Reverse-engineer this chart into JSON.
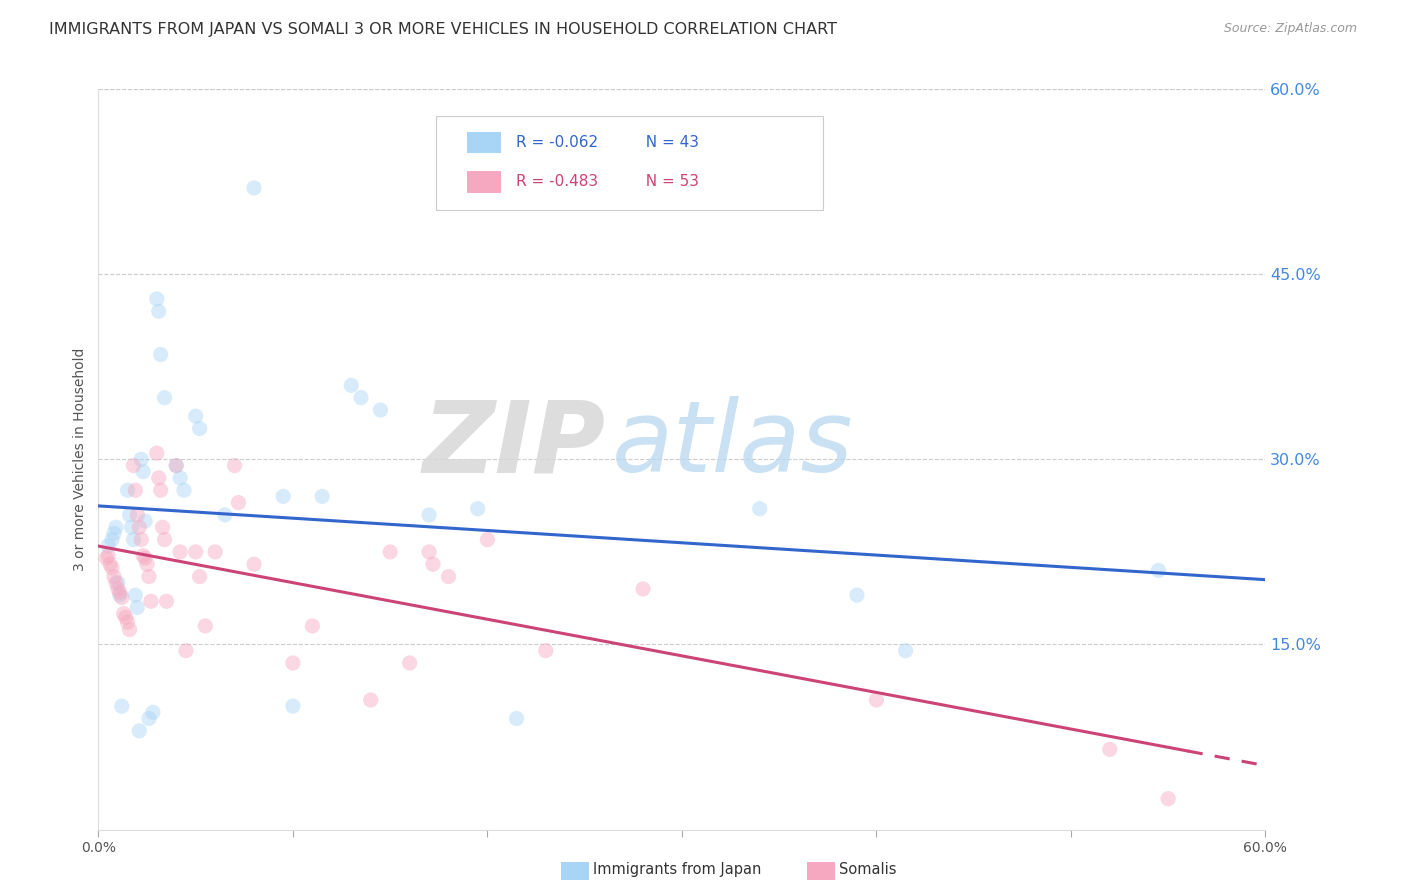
{
  "title": "IMMIGRANTS FROM JAPAN VS SOMALI 3 OR MORE VEHICLES IN HOUSEHOLD CORRELATION CHART",
  "source": "Source: ZipAtlas.com",
  "ylabel": "3 or more Vehicles in Household",
  "watermark_part1": "ZIP",
  "watermark_part2": "atlas",
  "right_ytick_labels": [
    "60.0%",
    "45.0%",
    "30.0%",
    "15.0%"
  ],
  "right_ytick_values": [
    0.6,
    0.45,
    0.3,
    0.15
  ],
  "xlim": [
    0.0,
    0.6
  ],
  "ylim": [
    0.0,
    0.6
  ],
  "xtick_values": [
    0.0,
    0.1,
    0.2,
    0.3,
    0.4,
    0.5,
    0.6
  ],
  "xtick_labels": [
    "0.0%",
    "",
    "",
    "",
    "",
    "",
    "60.0%"
  ],
  "legend1_r": "R = -0.062",
  "legend1_n": "  N = 43",
  "legend2_r": "R = -0.483",
  "legend2_n": "  N = 53",
  "legend1_color": "#a8d4f5",
  "legend2_color": "#f5a8c0",
  "trend_japan_color": "#3366cc",
  "trend_somali_color": "#cc4477",
  "bottom_legend1": "Immigrants from Japan",
  "bottom_legend2": "Somalis",
  "japan_x": [
    0.005,
    0.007,
    0.008,
    0.009,
    0.01,
    0.011,
    0.012,
    0.015,
    0.016,
    0.017,
    0.018,
    0.019,
    0.02,
    0.021,
    0.022,
    0.023,
    0.024,
    0.026,
    0.028,
    0.03,
    0.031,
    0.032,
    0.034,
    0.04,
    0.042,
    0.044,
    0.05,
    0.052,
    0.065,
    0.08,
    0.095,
    0.1,
    0.115,
    0.13,
    0.135,
    0.145,
    0.17,
    0.195,
    0.215,
    0.34,
    0.39,
    0.415,
    0.545
  ],
  "japan_y": [
    0.23,
    0.235,
    0.24,
    0.245,
    0.2,
    0.19,
    0.1,
    0.275,
    0.255,
    0.245,
    0.235,
    0.19,
    0.18,
    0.08,
    0.3,
    0.29,
    0.25,
    0.09,
    0.095,
    0.43,
    0.42,
    0.385,
    0.35,
    0.295,
    0.285,
    0.275,
    0.335,
    0.325,
    0.255,
    0.52,
    0.27,
    0.1,
    0.27,
    0.36,
    0.35,
    0.34,
    0.255,
    0.26,
    0.09,
    0.26,
    0.19,
    0.145,
    0.21
  ],
  "somali_x": [
    0.004,
    0.005,
    0.006,
    0.007,
    0.008,
    0.009,
    0.01,
    0.011,
    0.012,
    0.013,
    0.014,
    0.015,
    0.016,
    0.018,
    0.019,
    0.02,
    0.021,
    0.022,
    0.023,
    0.024,
    0.025,
    0.026,
    0.027,
    0.03,
    0.031,
    0.032,
    0.033,
    0.034,
    0.035,
    0.04,
    0.042,
    0.045,
    0.05,
    0.052,
    0.055,
    0.06,
    0.07,
    0.072,
    0.08,
    0.1,
    0.11,
    0.14,
    0.15,
    0.16,
    0.17,
    0.172,
    0.18,
    0.2,
    0.23,
    0.28,
    0.4,
    0.52,
    0.55
  ],
  "somali_y": [
    0.22,
    0.222,
    0.215,
    0.212,
    0.205,
    0.2,
    0.195,
    0.192,
    0.188,
    0.175,
    0.172,
    0.168,
    0.162,
    0.295,
    0.275,
    0.255,
    0.245,
    0.235,
    0.222,
    0.22,
    0.215,
    0.205,
    0.185,
    0.305,
    0.285,
    0.275,
    0.245,
    0.235,
    0.185,
    0.295,
    0.225,
    0.145,
    0.225,
    0.205,
    0.165,
    0.225,
    0.295,
    0.265,
    0.215,
    0.135,
    0.165,
    0.105,
    0.225,
    0.135,
    0.225,
    0.215,
    0.205,
    0.235,
    0.145,
    0.195,
    0.105,
    0.065,
    0.025
  ],
  "grid_color": "#cccccc",
  "background_color": "#ffffff",
  "title_fontsize": 11.5,
  "source_fontsize": 9,
  "axis_label_fontsize": 10,
  "tick_fontsize": 10,
  "legend_fontsize": 11,
  "scatter_size": 120,
  "scatter_alpha": 0.45,
  "trend_linewidth": 2.2
}
